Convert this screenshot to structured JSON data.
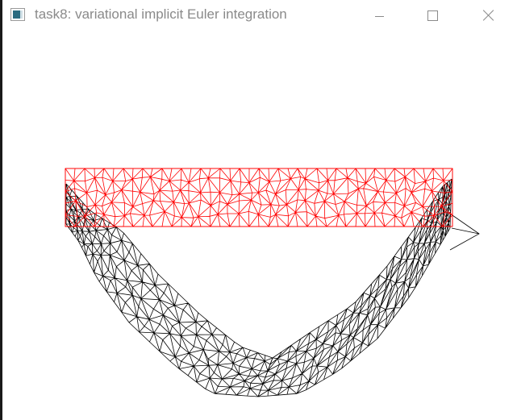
{
  "window": {
    "title": "task8: variational implicit Euler integration",
    "icon": "application-icon"
  },
  "controls": {
    "minimize_icon": "minimize-icon",
    "maximize_icon": "maximize-icon",
    "close_icon": "close-icon"
  },
  "scene": {
    "rest_mesh_color": "#ff0000",
    "deformed_mesh_color": "#000000",
    "background": "#ffffff"
  }
}
